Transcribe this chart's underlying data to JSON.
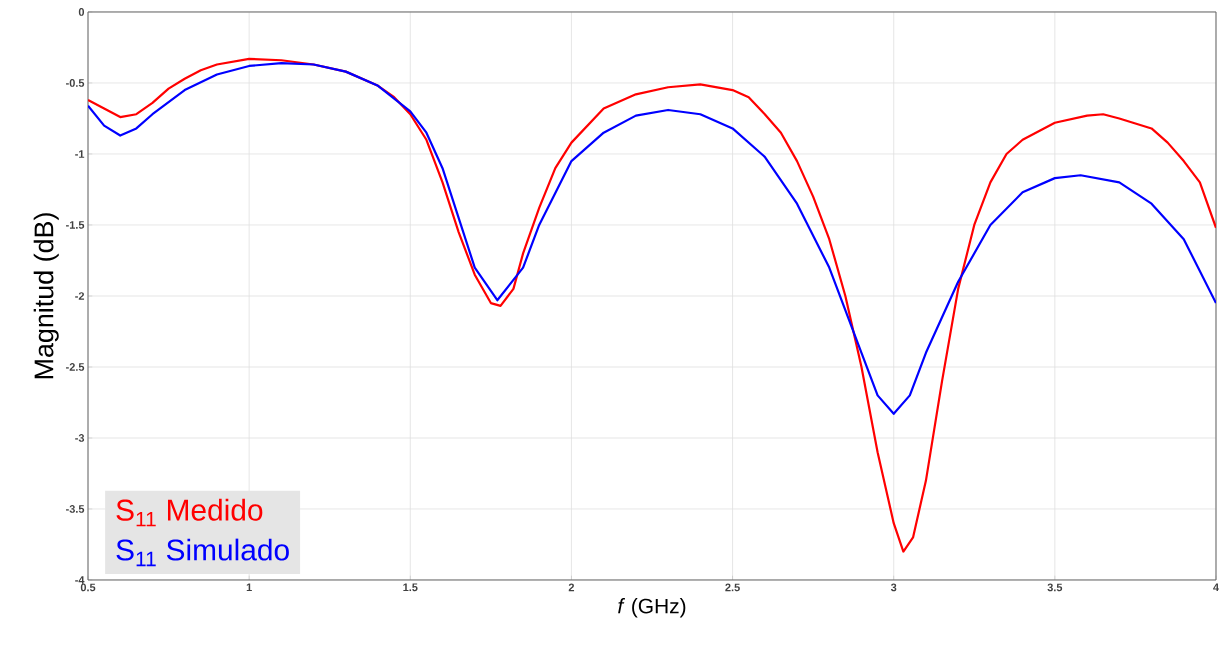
{
  "chart_data": {
    "type": "line",
    "xlabel": "*f* (GHz)",
    "ylabel": "Magnitud (dB)",
    "xlim": [
      0.5,
      4
    ],
    "ylim": [
      -4,
      0
    ],
    "xticks": [
      0.5,
      1,
      1.5,
      2,
      2.5,
      3,
      3.5,
      4
    ],
    "yticks": [
      -4,
      -3.5,
      -3,
      -2.5,
      -2,
      -1.5,
      -1,
      -0.5,
      0
    ],
    "grid": true,
    "legend": "bottom left",
    "series": [
      {
        "name": "S$_{11}$ Medido",
        "color": "#ff0000",
        "x": [
          0.5,
          0.55,
          0.6,
          0.65,
          0.7,
          0.75,
          0.8,
          0.85,
          0.9,
          1.0,
          1.1,
          1.2,
          1.3,
          1.4,
          1.45,
          1.5,
          1.55,
          1.6,
          1.65,
          1.7,
          1.75,
          1.78,
          1.82,
          1.85,
          1.9,
          1.95,
          2.0,
          2.1,
          2.2,
          2.3,
          2.4,
          2.5,
          2.55,
          2.6,
          2.65,
          2.7,
          2.75,
          2.8,
          2.85,
          2.9,
          2.95,
          3.0,
          3.03,
          3.06,
          3.1,
          3.15,
          3.2,
          3.25,
          3.3,
          3.35,
          3.4,
          3.5,
          3.6,
          3.65,
          3.7,
          3.8,
          3.85,
          3.9,
          3.95,
          4.0
        ],
        "values": [
          -0.62,
          -0.68,
          -0.74,
          -0.72,
          -0.64,
          -0.54,
          -0.47,
          -0.41,
          -0.37,
          -0.33,
          -0.34,
          -0.37,
          -0.42,
          -0.52,
          -0.6,
          -0.72,
          -0.9,
          -1.2,
          -1.55,
          -1.85,
          -2.05,
          -2.07,
          -1.95,
          -1.7,
          -1.38,
          -1.1,
          -0.92,
          -0.68,
          -0.58,
          -0.53,
          -0.51,
          -0.55,
          -0.6,
          -0.72,
          -0.85,
          -1.05,
          -1.3,
          -1.6,
          -2.0,
          -2.5,
          -3.1,
          -3.6,
          -3.8,
          -3.7,
          -3.3,
          -2.6,
          -1.95,
          -1.5,
          -1.2,
          -1.0,
          -0.9,
          -0.78,
          -0.73,
          -0.72,
          -0.75,
          -0.82,
          -0.92,
          -1.05,
          -1.2,
          -1.52
        ]
      },
      {
        "name": "S$_{11}$ Simulado",
        "color": "#0000ff",
        "x": [
          0.5,
          0.55,
          0.6,
          0.65,
          0.7,
          0.8,
          0.9,
          1.0,
          1.1,
          1.2,
          1.3,
          1.4,
          1.5,
          1.55,
          1.6,
          1.65,
          1.7,
          1.77,
          1.85,
          1.9,
          2.0,
          2.1,
          2.2,
          2.3,
          2.4,
          2.5,
          2.6,
          2.7,
          2.8,
          2.9,
          2.95,
          3.0,
          3.05,
          3.1,
          3.2,
          3.3,
          3.4,
          3.5,
          3.58,
          3.7,
          3.8,
          3.9,
          4.0
        ],
        "values": [
          -0.66,
          -0.8,
          -0.87,
          -0.82,
          -0.72,
          -0.55,
          -0.44,
          -0.38,
          -0.36,
          -0.37,
          -0.42,
          -0.52,
          -0.7,
          -0.85,
          -1.1,
          -1.45,
          -1.8,
          -2.03,
          -1.8,
          -1.5,
          -1.05,
          -0.85,
          -0.73,
          -0.69,
          -0.72,
          -0.82,
          -1.02,
          -1.35,
          -1.8,
          -2.4,
          -2.7,
          -2.83,
          -2.7,
          -2.4,
          -1.9,
          -1.5,
          -1.27,
          -1.17,
          -1.15,
          -1.2,
          -1.35,
          -1.6,
          -2.05
        ]
      }
    ]
  }
}
